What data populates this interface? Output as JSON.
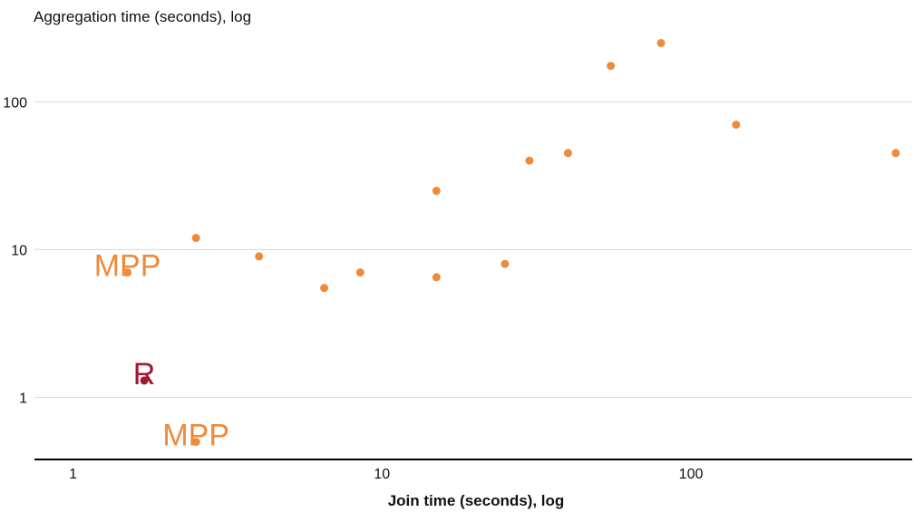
{
  "chart_data": {
    "type": "scatter",
    "title": "",
    "ylabel": "Aggregation time (seconds), log",
    "xlabel": "Join time (seconds), log",
    "x_scale": "log",
    "y_scale": "log",
    "xlim": [
      0.75,
      520
    ],
    "ylim": [
      0.38,
      320
    ],
    "x_ticks": [
      {
        "value": 1,
        "label": "1"
      },
      {
        "value": 10,
        "label": "10"
      },
      {
        "value": 100,
        "label": "100"
      }
    ],
    "y_ticks": [
      {
        "value": 1,
        "label": "1"
      },
      {
        "value": 10,
        "label": "10"
      },
      {
        "value": 100,
        "label": "100"
      }
    ],
    "grid": {
      "horizontal": true,
      "vertical": false
    },
    "legend": "none",
    "series": [
      {
        "color": "#ef8a3a",
        "points": [
          {
            "x": 1.5,
            "y": 7.0
          },
          {
            "x": 2.5,
            "y": 12.0
          },
          {
            "x": 2.5,
            "y": 0.5
          },
          {
            "x": 4.0,
            "y": 9.0
          },
          {
            "x": 6.5,
            "y": 5.5
          },
          {
            "x": 8.5,
            "y": 7.0
          },
          {
            "x": 15,
            "y": 25
          },
          {
            "x": 15,
            "y": 6.5
          },
          {
            "x": 25,
            "y": 8.0
          },
          {
            "x": 30,
            "y": 40
          },
          {
            "x": 40,
            "y": 45
          },
          {
            "x": 55,
            "y": 175
          },
          {
            "x": 80,
            "y": 250
          },
          {
            "x": 140,
            "y": 70
          },
          {
            "x": 460,
            "y": 45
          }
        ]
      },
      {
        "color": "#9e1b32",
        "points": [
          {
            "x": 1.7,
            "y": 1.3
          }
        ]
      }
    ],
    "annotations": [
      {
        "text": "MPP",
        "x": 1.5,
        "y": 7.0,
        "color": "#ef8a3a"
      },
      {
        "text": "R",
        "x": 1.7,
        "y": 1.3,
        "color": "#9e1b32"
      },
      {
        "text": "MPP",
        "x": 2.5,
        "y": 0.5,
        "color": "#ef8a3a"
      }
    ]
  }
}
